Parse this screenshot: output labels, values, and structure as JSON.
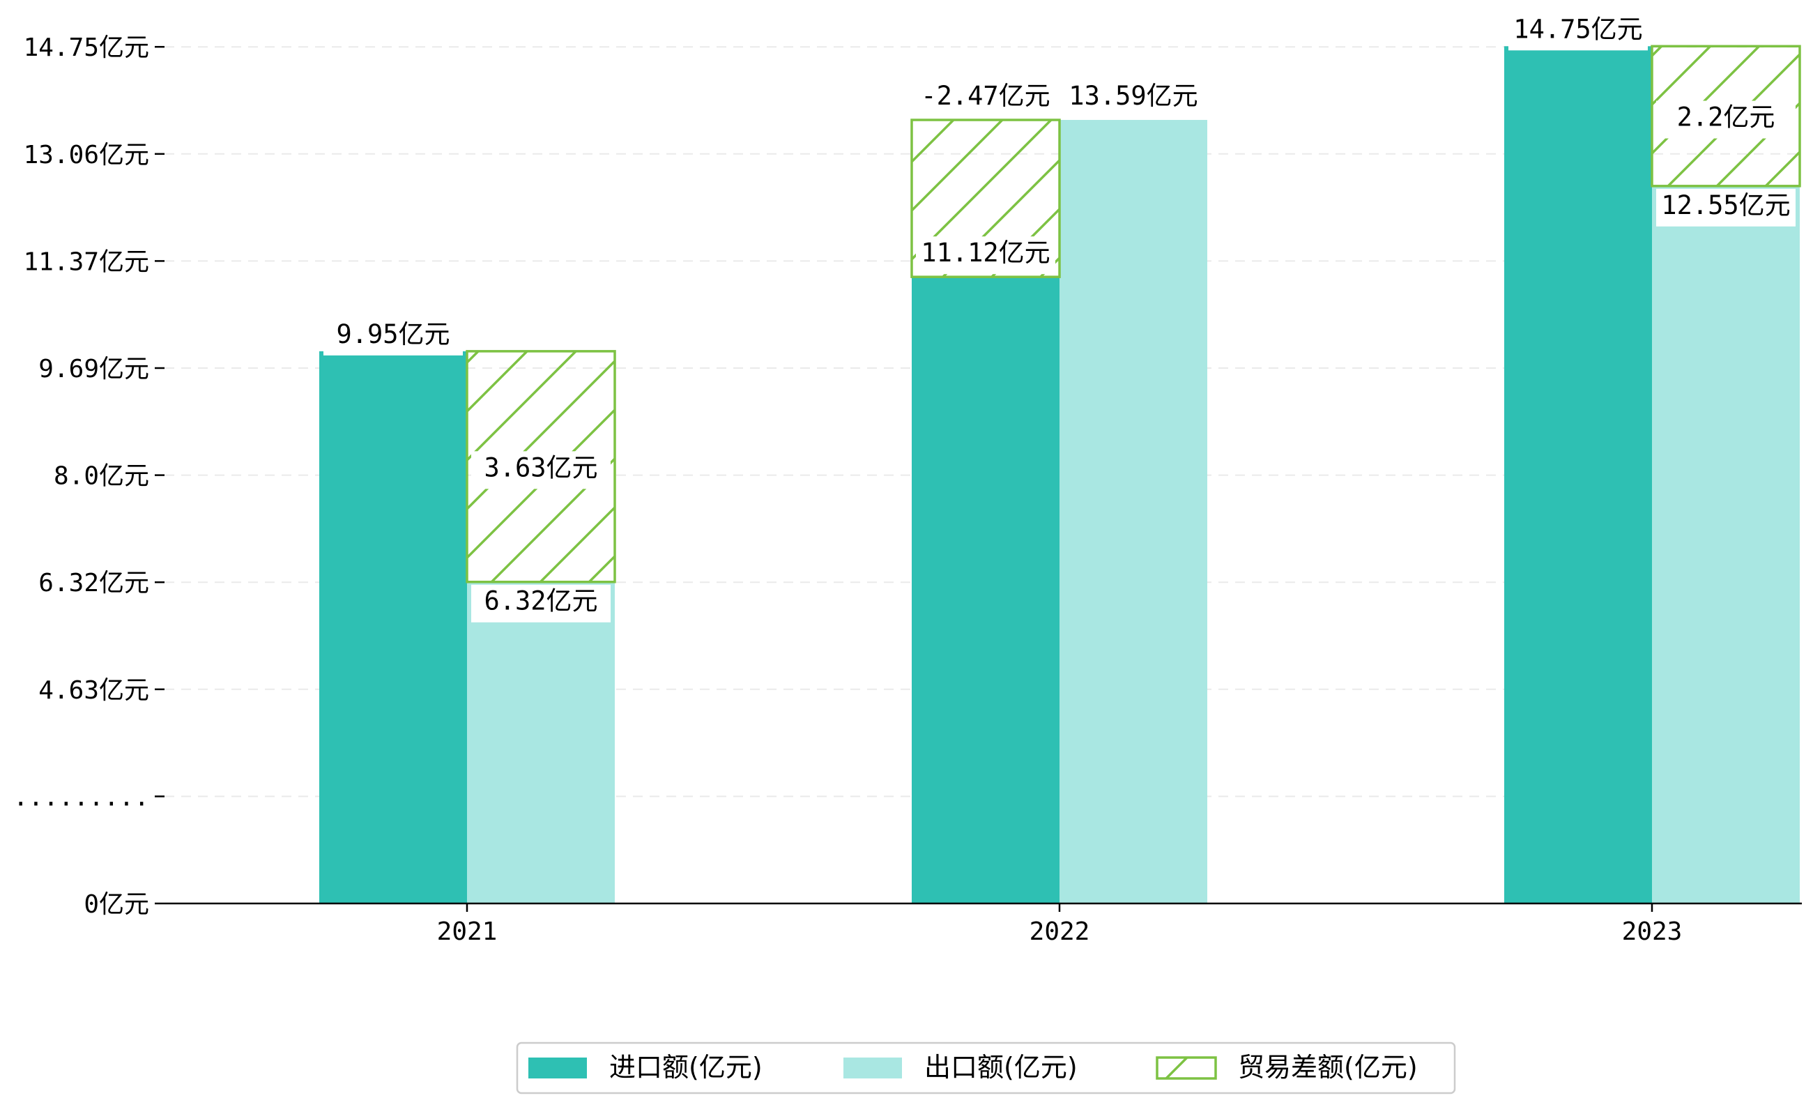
{
  "chart_data": {
    "type": "bar",
    "categories": [
      "2021",
      "2022",
      "2023"
    ],
    "series": [
      {
        "name": "进口额(亿元)",
        "values": [
          9.95,
          11.12,
          14.75
        ],
        "color": "#2EC0B3"
      },
      {
        "name": "出口额(亿元)",
        "values": [
          6.32,
          13.59,
          12.55
        ],
        "color": "#A9E7E2"
      },
      {
        "name": "贸易差额(亿元)",
        "values": [
          3.63,
          -2.47,
          2.2
        ],
        "color": "#7DC243",
        "pattern": "diagonal-hatch"
      }
    ],
    "value_labels": {
      "import": [
        "9.95亿元",
        "11.12亿元",
        "14.75亿元"
      ],
      "export": [
        "6.32亿元",
        "13.59亿元",
        "12.55亿元"
      ],
      "balance": [
        "3.63亿元",
        "-2.47亿元",
        "2.2亿元"
      ]
    },
    "y_ticks": [
      {
        "value": 0,
        "label": "0亿元"
      },
      {
        "value": 1.685,
        "label": "........."
      },
      {
        "value": 3.37,
        "label": "4.63亿元"
      },
      {
        "value": 5.055,
        "label": "6.32亿元"
      },
      {
        "value": 6.74,
        "label": "8.0亿元"
      },
      {
        "value": 8.425,
        "label": "9.69亿元"
      },
      {
        "value": 10.11,
        "label": "11.37亿元"
      },
      {
        "value": 11.795,
        "label": "13.06亿元"
      },
      {
        "value": 13.48,
        "label": "14.75亿元"
      }
    ],
    "axis_break": "y-axis truncated between 0 and 4.63 (shown as .........)",
    "grid": "horizontal dashed",
    "legend_position": "bottom-center",
    "title": "",
    "xlabel": "",
    "ylabel": ""
  }
}
